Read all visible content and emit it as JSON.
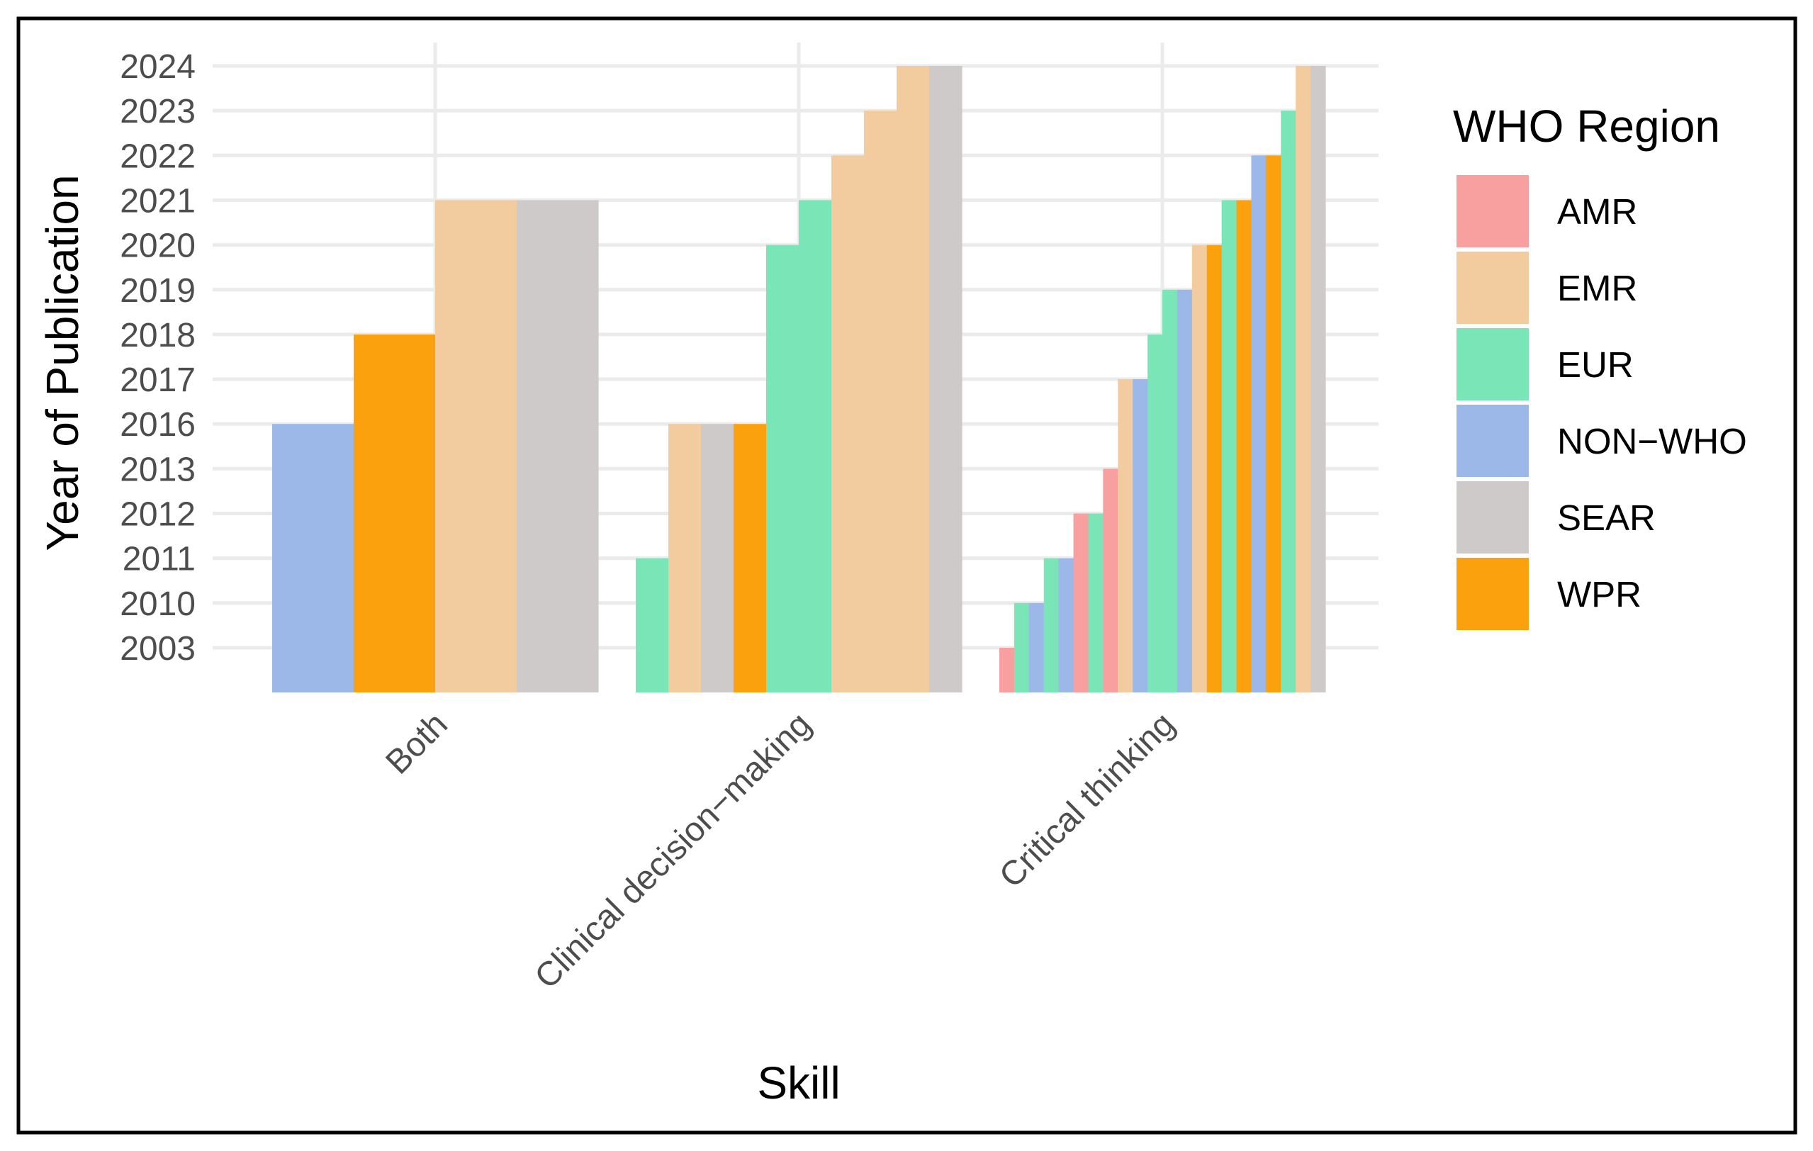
{
  "chart_data": {
    "type": "bar",
    "title": "",
    "xlabel": "Skill",
    "ylabel": "Year of Publication",
    "y_axis_kind": "discrete",
    "y_levels": [
      "2003",
      "2010",
      "2011",
      "2012",
      "2013",
      "2016",
      "2017",
      "2018",
      "2019",
      "2020",
      "2021",
      "2022",
      "2023",
      "2024"
    ],
    "categories": [
      "Both",
      "Clinical decision−making",
      "Critical thinking"
    ],
    "grid": true,
    "legend": {
      "title": "WHO Region",
      "position": "right",
      "entries": [
        {
          "key": "AMR",
          "label": "AMR",
          "color": "#F8A0A0"
        },
        {
          "key": "EMR",
          "label": "EMR",
          "color": "#F2CB9E"
        },
        {
          "key": "EUR",
          "label": "EUR",
          "color": "#7AE5B6"
        },
        {
          "key": "NON-WHO",
          "label": "NON−WHO",
          "color": "#9BB8E8"
        },
        {
          "key": "SEAR",
          "label": "SEAR",
          "color": "#CFCACA"
        },
        {
          "key": "WPR",
          "label": "WPR",
          "color": "#FBA10D"
        }
      ]
    },
    "groups": [
      {
        "category": "Both",
        "bars": [
          {
            "region": "NON-WHO",
            "year": "2016"
          },
          {
            "region": "WPR",
            "year": "2018"
          },
          {
            "region": "EMR",
            "year": "2021"
          },
          {
            "region": "SEAR",
            "year": "2021"
          }
        ]
      },
      {
        "category": "Clinical decision−making",
        "bars": [
          {
            "region": "EUR",
            "year": "2011"
          },
          {
            "region": "EMR",
            "year": "2016"
          },
          {
            "region": "SEAR",
            "year": "2016"
          },
          {
            "region": "WPR",
            "year": "2016"
          },
          {
            "region": "EUR",
            "year": "2020"
          },
          {
            "region": "EUR",
            "year": "2021"
          },
          {
            "region": "EMR",
            "year": "2022"
          },
          {
            "region": "EMR",
            "year": "2023"
          },
          {
            "region": "EMR",
            "year": "2024"
          },
          {
            "region": "SEAR",
            "year": "2024"
          }
        ]
      },
      {
        "category": "Critical thinking",
        "bars": [
          {
            "region": "AMR",
            "year": "2003"
          },
          {
            "region": "EUR",
            "year": "2010"
          },
          {
            "region": "NON-WHO",
            "year": "2010"
          },
          {
            "region": "EUR",
            "year": "2011"
          },
          {
            "region": "NON-WHO",
            "year": "2011"
          },
          {
            "region": "AMR",
            "year": "2012"
          },
          {
            "region": "EUR",
            "year": "2012"
          },
          {
            "region": "AMR",
            "year": "2013"
          },
          {
            "region": "EMR",
            "year": "2017"
          },
          {
            "region": "NON-WHO",
            "year": "2017"
          },
          {
            "region": "EUR",
            "year": "2018"
          },
          {
            "region": "EUR",
            "year": "2019"
          },
          {
            "region": "NON-WHO",
            "year": "2019"
          },
          {
            "region": "EMR",
            "year": "2020"
          },
          {
            "region": "WPR",
            "year": "2020"
          },
          {
            "region": "EUR",
            "year": "2021"
          },
          {
            "region": "WPR",
            "year": "2021"
          },
          {
            "region": "NON-WHO",
            "year": "2022"
          },
          {
            "region": "WPR",
            "year": "2022"
          },
          {
            "region": "EUR",
            "year": "2023"
          },
          {
            "region": "EMR",
            "year": "2024"
          },
          {
            "region": "SEAR",
            "year": "2024"
          }
        ]
      }
    ]
  }
}
